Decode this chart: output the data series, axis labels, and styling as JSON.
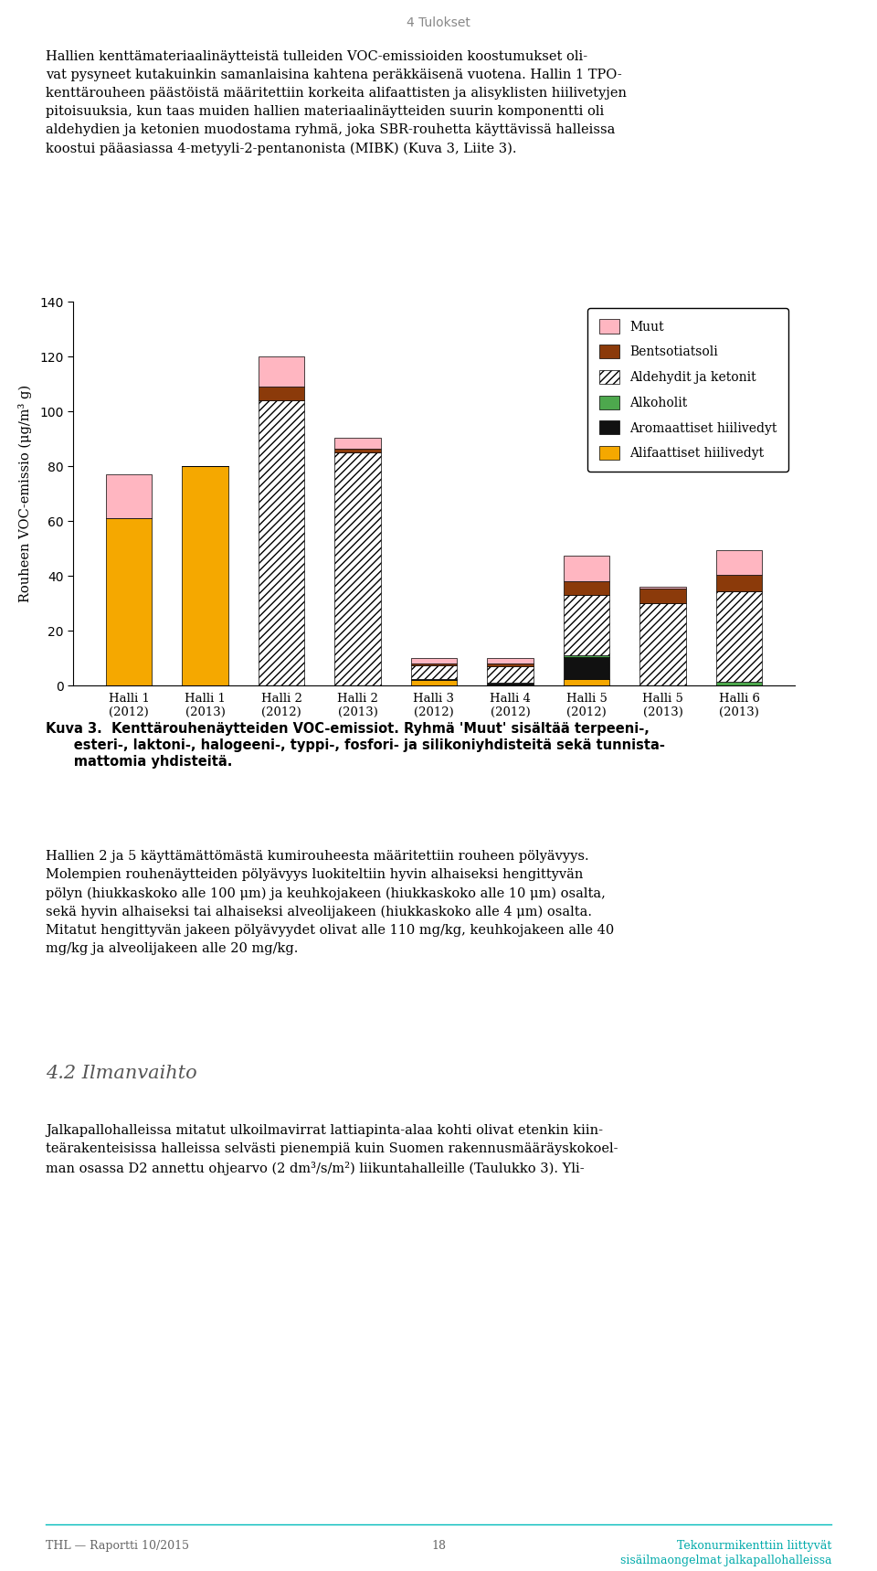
{
  "categories": [
    "Halli 1\n(2012)",
    "Halli 1\n(2013)",
    "Halli 2\n(2012)",
    "Halli 2\n(2013)",
    "Halli 3\n(2012)",
    "Halli 4\n(2012)",
    "Halli 5\n(2012)",
    "Halli 5\n(2013)",
    "Halli 6\n(2013)"
  ],
  "alifaattiset": [
    61,
    80,
    0,
    0,
    2,
    0,
    2.5,
    0,
    0
  ],
  "aromaattiset": [
    0,
    0,
    0,
    0,
    0.5,
    1,
    8,
    0,
    0
  ],
  "alkoholit": [
    0,
    0,
    0,
    0,
    0,
    0,
    0.5,
    0,
    1.5
  ],
  "aldehydit": [
    0,
    0,
    104,
    85,
    5,
    6,
    22,
    30,
    33
  ],
  "bentsotiatsoli": [
    0,
    0,
    5,
    1.5,
    0.5,
    1,
    5,
    5.5,
    6
  ],
  "muut": [
    16,
    0,
    11,
    4,
    2,
    2,
    9.5,
    0.5,
    9
  ],
  "ylim": [
    0,
    140
  ],
  "yticks": [
    0,
    20,
    40,
    60,
    80,
    100,
    120,
    140
  ],
  "ylabel": "Rouheen VOC-emissio (μg/m³ g)",
  "color_alifaattiset": "#F5A800",
  "color_aromaattiset": "#111111",
  "color_alkoholit": "#4DA84D",
  "color_aldehydit_face": "#ffffff",
  "color_bentsotiatsoli": "#8B3A0A",
  "color_muut": "#FFB6C1",
  "page_header": "4 Tulokset",
  "top_text_line1": "Hallien kenttämateriaalinäytteistä tulleiden VOC-emissioiden koostumukset oli-",
  "top_text_line2": "vat pysyneet kutakuinkin samanlaisina kahtena peräkkäisenä vuotena. Hallin 1 TPO-",
  "top_text_line3": "kenttärouheen päästöistä määritettiin korkeita alifaattisten ja alisyklisten hiilivetyjen",
  "top_text_line4": "pitoisuuksia, kun taas muiden hallien materiaalinäytteiden suurin komponentti oli",
  "top_text_line5": "aldehydien ja ketonien muodostama ryhmä, joka SBR-rouhetta käyttävissä halleissa",
  "top_text_line6": "koostui pääasiassa 4-metyyli-2-pentanonista (MIBK) (Kuva 3, Liite 3).",
  "caption_bold": "Kuva 3.",
  "caption_rest": "  Kenttärouhenäytteiden VOC-emissiot. Ryhmä ‘Muut’ sisältää terpeeni-,",
  "caption_line2": "      esteri-, laktoni-, halogeeni-, typpi-, fosfori- ja silikoniyhdisteitä sekä tunnista-",
  "caption_line3": "      mattomia yhdisteitä.",
  "bottom_text_line1": "Hallien 2 ja 5 käyttämättömästä kumirouheesta määritettiin rouheen pölyävyys.",
  "bottom_text_line2": "Molempien rouhenäytteiden pölyävyys luokiteltiin hyvin alhaiseksi hengittyvän",
  "bottom_text_line3": "pölyn (hiukkaskoko alle 100 μm) ja keuhkojakeen (hiukkaskoko alle 10 μm) osalta,",
  "bottom_text_line4": "sekä hyvin alhaiseksi tai alhaiseksi alveolijakeen (hiukkaskoko alle 4 μm) osalta.",
  "bottom_text_line5": "Mitatut hengittyvän jakeen pölyävyydet olivat alle 110 mg/kg, keuhkojakeen alle 40",
  "bottom_text_line6": "mg/kg ja alveolijakeen alle 20 mg/kg.",
  "section_header": "4.2 Ilmanvaihto",
  "section_text_line1": "Jalkapallohalleissa mitatut ulkoilmavirrat lattiapinta-alaa kohti olivat etenkin kiin-",
  "section_text_line2": "teärakenteisissa halleissa selvästi pienempiä kuin Suomen rakennusmääräyskokoel-",
  "section_text_line3": "man osassa D2 annettu ohjearvo (2 dm³/s/m²) liikuntahalleille (Taulukko 3). Yli-",
  "footer_left": "THL — Raportti 10/2015",
  "footer_center": "18",
  "footer_right_line1": "Tekonurmikenttiin liittyvät",
  "footer_right_line2": "sisäilmaongelmat jalkapallohalleissa"
}
